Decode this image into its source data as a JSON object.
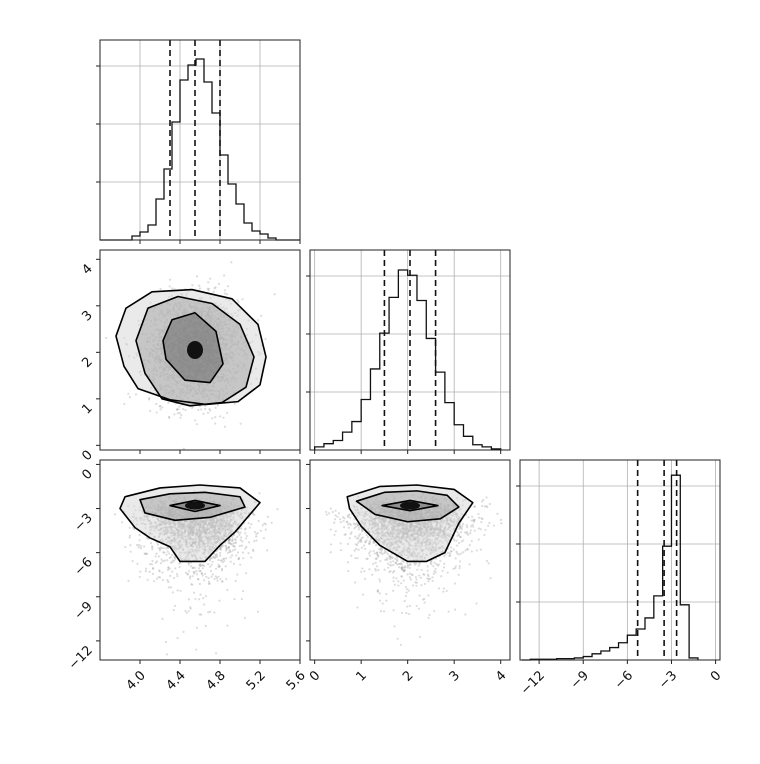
{
  "chart_data": [
    {
      "type": "histogram",
      "panel": "hist-x",
      "x_range": [
        3.6,
        5.6
      ],
      "xticks": [
        4.0,
        4.4,
        4.8,
        5.2,
        5.6
      ],
      "xticklabels": [],
      "bins": [
        3.6,
        3.68,
        3.76,
        3.84,
        3.92,
        4.0,
        4.08,
        4.16,
        4.24,
        4.32,
        4.4,
        4.48,
        4.56,
        4.64,
        4.72,
        4.8,
        4.88,
        4.96,
        5.04,
        5.12,
        5.2,
        5.28,
        5.36,
        5.44,
        5.52,
        5.6
      ],
      "counts": [
        0,
        0,
        0,
        0,
        4,
        8,
        15,
        41,
        71,
        118,
        160,
        175,
        181,
        158,
        127,
        85,
        56,
        36,
        17,
        9,
        6,
        2,
        0,
        0,
        0
      ],
      "ylim": [
        0,
        200
      ],
      "quantile_lines": [
        4.3,
        4.55,
        4.8
      ],
      "grid": true
    },
    {
      "type": "histogram",
      "panel": "hist-y",
      "x_range": [
        -0.1,
        4.2
      ],
      "xticks": [
        0,
        1,
        2,
        3,
        4
      ],
      "xticklabels": [],
      "bins": [
        0.0,
        0.2,
        0.4,
        0.6,
        0.8,
        1.0,
        1.2,
        1.4,
        1.6,
        1.8,
        2.0,
        2.2,
        2.4,
        2.6,
        2.8,
        3.0,
        3.2,
        3.4,
        3.6,
        3.8,
        4.0
      ],
      "counts": [
        3,
        6,
        9,
        17,
        27,
        48,
        77,
        111,
        145,
        171,
        166,
        142,
        106,
        74,
        45,
        24,
        13,
        5,
        3,
        1
      ],
      "ylim": [
        0,
        190
      ],
      "quantile_lines": [
        1.5,
        2.05,
        2.6
      ],
      "grid": true
    },
    {
      "type": "histogram",
      "panel": "hist-z",
      "x_range": [
        -13.3,
        0.3
      ],
      "xticks": [
        -12,
        -9,
        -6,
        -3,
        0
      ],
      "xticklabels": [
        "−12",
        "−9",
        "−6",
        "−3",
        "0"
      ],
      "bins": [
        -13.2,
        -12.6,
        -12.0,
        -11.4,
        -10.8,
        -10.2,
        -9.6,
        -9.0,
        -8.4,
        -7.8,
        -7.2,
        -6.6,
        -6.0,
        -5.4,
        -4.8,
        -4.2,
        -3.6,
        -3.0,
        -2.4,
        -1.8,
        -1.2
      ],
      "counts": [
        0,
        1,
        1,
        1,
        2,
        2,
        3,
        5,
        9,
        13,
        18,
        25,
        36,
        45,
        61,
        93,
        165,
        268,
        80,
        3
      ],
      "ylim": [
        0,
        290
      ],
      "quantile_lines": [
        -5.3,
        -3.5,
        -2.65
      ],
      "grid": true
    },
    {
      "type": "scatter-density",
      "panel": "x-vs-y",
      "x_range": [
        3.6,
        5.6
      ],
      "y_range": [
        -0.1,
        4.2
      ],
      "xticks": [
        4.0,
        4.4,
        4.8,
        5.2,
        5.6
      ],
      "yticks": [
        0,
        1,
        2,
        3,
        4
      ],
      "yticklabels": [
        "0",
        "1",
        "2",
        "3",
        "4"
      ],
      "center": [
        4.55,
        2.05
      ],
      "spread": [
        0.22,
        0.55
      ],
      "contours": [
        {
          "level": 1,
          "x": [
            4.26,
            4.45,
            4.7,
            4.83,
            4.76,
            4.55,
            4.32,
            4.23
          ],
          "y": [
            1.85,
            1.4,
            1.35,
            1.75,
            2.45,
            2.85,
            2.7,
            2.25
          ]
        },
        {
          "level": 2,
          "x": [
            4.05,
            4.22,
            4.5,
            4.82,
            5.06,
            5.14,
            5.0,
            4.72,
            4.38,
            4.08,
            3.96
          ],
          "y": [
            1.55,
            1.0,
            0.85,
            0.92,
            1.25,
            1.9,
            2.6,
            3.05,
            3.2,
            2.95,
            2.25
          ]
        },
        {
          "level": 3,
          "x": [
            3.84,
            3.98,
            4.3,
            4.66,
            4.98,
            5.2,
            5.26,
            5.18,
            4.92,
            4.52,
            4.12,
            3.86,
            3.76
          ],
          "y": [
            1.7,
            1.22,
            0.98,
            0.88,
            0.94,
            1.3,
            1.9,
            2.6,
            3.15,
            3.35,
            3.3,
            2.95,
            2.35
          ]
        }
      ]
    },
    {
      "type": "scatter-density",
      "panel": "x-vs-z",
      "x_range": [
        3.6,
        5.6
      ],
      "y_range": [
        -13.3,
        0.3
      ],
      "xticks": [
        4.0,
        4.4,
        4.8,
        5.2,
        5.6
      ],
      "xticklabels": [
        "4.0",
        "4.4",
        "4.8",
        "5.2",
        "5.6"
      ],
      "yticks": [
        -12,
        -9,
        -6,
        -3,
        0
      ],
      "yticklabels": [
        "−12",
        "−9",
        "−6",
        "−3",
        "0"
      ],
      "center": [
        4.55,
        -2.8
      ],
      "spread": [
        0.25,
        1.6
      ],
      "contours": [
        {
          "level": 1,
          "x": [
            4.3,
            4.55,
            4.8,
            4.55
          ],
          "y": [
            -2.8,
            -3.2,
            -2.8,
            -2.45
          ]
        },
        {
          "level": 2,
          "x": [
            4.0,
            4.3,
            4.65,
            5.0,
            5.05,
            4.7,
            4.35,
            4.05
          ],
          "y": [
            -2.4,
            -2.0,
            -1.9,
            -2.2,
            -2.9,
            -3.6,
            -3.8,
            -3.3
          ]
        },
        {
          "level": 3,
          "x": [
            3.85,
            4.2,
            4.6,
            5.0,
            5.2,
            5.05,
            4.95,
            4.8,
            4.65,
            4.4,
            4.3,
            4.1,
            3.95,
            3.8
          ],
          "y": [
            -2.2,
            -1.6,
            -1.4,
            -1.6,
            -2.6,
            -3.8,
            -4.6,
            -5.5,
            -6.6,
            -6.6,
            -5.6,
            -5.0,
            -4.3,
            -3.0
          ]
        }
      ]
    },
    {
      "type": "scatter-density",
      "panel": "y-vs-z",
      "x_range": [
        -0.1,
        4.2
      ],
      "y_range": [
        -13.3,
        0.3
      ],
      "xticks": [
        0,
        1,
        2,
        3,
        4
      ],
      "xticklabels": [
        "0",
        "1",
        "2",
        "3",
        "4"
      ],
      "yticks": [
        -12,
        -9,
        -6,
        -3,
        0
      ],
      "yticklabels": [],
      "center": [
        2.05,
        -2.8
      ],
      "spread": [
        0.6,
        1.6
      ],
      "contours": [
        {
          "level": 1,
          "x": [
            1.45,
            2.05,
            2.65,
            2.05
          ],
          "y": [
            -2.8,
            -3.15,
            -2.8,
            -2.45
          ]
        },
        {
          "level": 2,
          "x": [
            0.9,
            1.5,
            2.2,
            2.85,
            3.1,
            2.7,
            2.0,
            1.3
          ],
          "y": [
            -2.5,
            -1.9,
            -1.8,
            -2.1,
            -2.9,
            -3.7,
            -3.9,
            -3.4
          ]
        },
        {
          "level": 3,
          "x": [
            0.7,
            1.4,
            2.2,
            3.0,
            3.4,
            3.1,
            2.8,
            2.4,
            2.0,
            1.4,
            1.0,
            0.75
          ],
          "y": [
            -2.2,
            -1.5,
            -1.4,
            -1.7,
            -2.6,
            -4.0,
            -6.0,
            -6.6,
            -6.6,
            -5.5,
            -4.2,
            -3.0
          ]
        }
      ]
    }
  ]
}
